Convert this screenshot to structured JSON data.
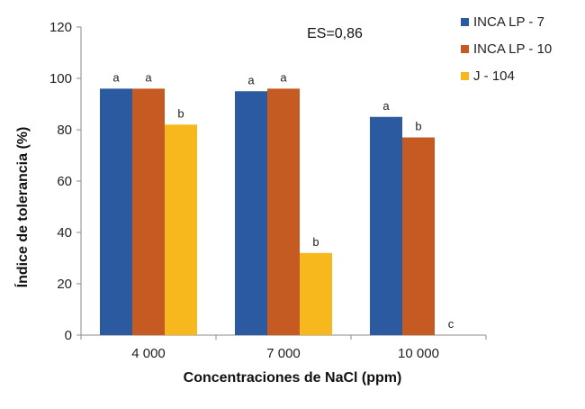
{
  "chart_data": {
    "type": "bar",
    "categories": [
      "4 000",
      "7 000",
      "10 000"
    ],
    "series": [
      {
        "name": "INCA LP - 7",
        "color": "#2c5aa0",
        "values": [
          96,
          95,
          85
        ],
        "letters": [
          "a",
          "a",
          "a"
        ]
      },
      {
        "name": "INCA LP - 10",
        "color": "#c55a22",
        "values": [
          96,
          96,
          77
        ],
        "letters": [
          "a",
          "a",
          "b"
        ]
      },
      {
        "name": "J - 104",
        "color": "#f6b81c",
        "values": [
          82,
          32,
          0
        ],
        "letters": [
          "b",
          "b",
          "c"
        ]
      }
    ],
    "xlabel": "Concentraciones de NaCl (ppm)",
    "ylabel": "Índice de tolerancia (%)",
    "ylim": [
      0,
      120
    ],
    "yticks": [
      "0",
      "20",
      "40",
      "60",
      "80",
      "100",
      "120"
    ],
    "annotation": "ES=0,86",
    "legend_position": "top-right",
    "grid": false
  }
}
